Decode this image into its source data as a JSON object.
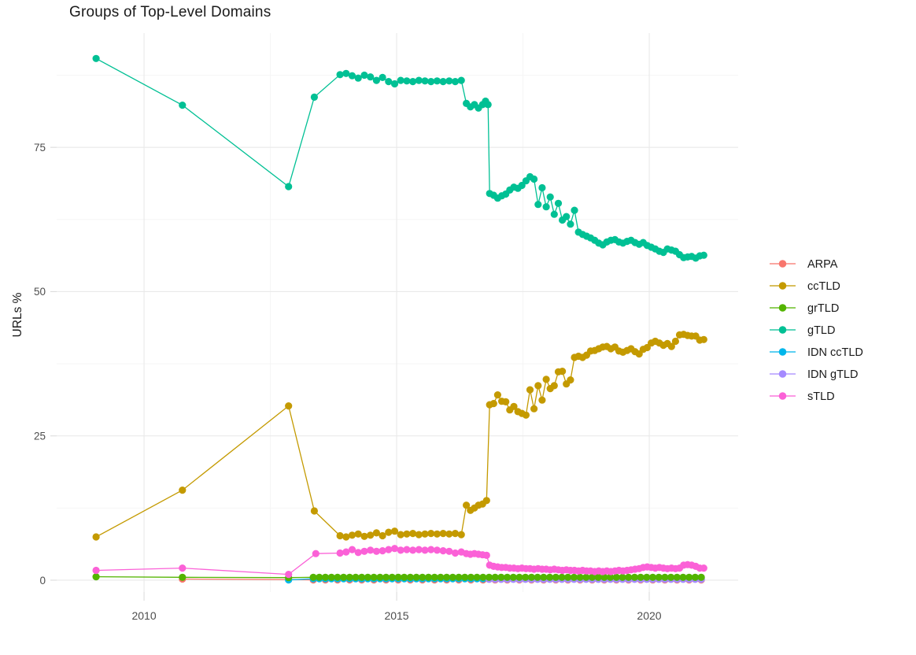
{
  "title": "Groups of Top-Level Domains",
  "colors": {
    "background": "#ffffff",
    "grid_major": "#e9e9e9",
    "grid_minor": "#f5f5f5",
    "tick_text": "#4d4d4d",
    "text": "#1a1a1a"
  },
  "chart_data": {
    "type": "line",
    "title": "Groups of Top-Level Domains",
    "xlabel": "",
    "ylabel": "URLs %",
    "grid": "on",
    "legend_position": "right",
    "xlim": [
      2008.27,
      2021.76
    ],
    "ylim": [
      -2.05,
      94.8
    ],
    "x_ticks": {
      "major": [
        2010,
        2015,
        2020
      ],
      "minor": [
        2012.5,
        2017.5
      ],
      "labels": [
        "2010",
        "2015",
        "2020"
      ]
    },
    "y_ticks": {
      "major": [
        0,
        25,
        50,
        75
      ],
      "minor": [
        12.5,
        37.5,
        62.5,
        87.5
      ],
      "labels": [
        "0",
        "25",
        "50",
        "75"
      ]
    },
    "draw_order": [
      "ARPA",
      "IDN ccTLD",
      "IDN gTLD",
      "grTLD",
      "sTLD",
      "ccTLD",
      "gTLD"
    ],
    "legend_order": [
      "ARPA",
      "ccTLD",
      "grTLD",
      "gTLD",
      "IDN ccTLD",
      "IDN gTLD",
      "sTLD"
    ],
    "series": [
      {
        "name": "ARPA",
        "color": "#F8766D",
        "points": [
          [
            2010.76,
            0.2
          ],
          [
            2012.86,
            0.1
          ]
        ],
        "flat": {
          "from": 2013.35,
          "to": 2021.03,
          "step": 0.24,
          "value": 0.05
        }
      },
      {
        "name": "ccTLD",
        "color": "#C49A00",
        "points": [
          [
            2009.05,
            7.5
          ],
          [
            2010.76,
            15.6
          ],
          [
            2012.86,
            30.2
          ],
          [
            2013.37,
            12.0
          ],
          [
            2013.88,
            7.7
          ],
          [
            2014.0,
            7.5
          ],
          [
            2014.12,
            7.8
          ],
          [
            2014.24,
            8.0
          ],
          [
            2014.36,
            7.6
          ],
          [
            2014.48,
            7.8
          ],
          [
            2014.6,
            8.2
          ],
          [
            2014.72,
            7.7
          ],
          [
            2014.84,
            8.3
          ],
          [
            2014.96,
            8.5
          ],
          [
            2015.08,
            7.9
          ],
          [
            2015.2,
            8.0
          ],
          [
            2015.32,
            8.1
          ],
          [
            2015.44,
            7.9
          ],
          [
            2015.56,
            8.0
          ],
          [
            2015.68,
            8.1
          ],
          [
            2015.8,
            8.0
          ],
          [
            2015.92,
            8.1
          ],
          [
            2016.04,
            8.0
          ],
          [
            2016.16,
            8.1
          ],
          [
            2016.28,
            7.9
          ],
          [
            2016.38,
            13.0
          ],
          [
            2016.46,
            12.1
          ],
          [
            2016.54,
            12.5
          ],
          [
            2016.62,
            13.0
          ],
          [
            2016.7,
            13.2
          ],
          [
            2016.78,
            13.8
          ],
          [
            2016.84,
            30.4
          ],
          [
            2016.92,
            30.6
          ],
          [
            2017.0,
            32.1
          ],
          [
            2017.08,
            31.0
          ],
          [
            2017.16,
            30.9
          ],
          [
            2017.24,
            29.5
          ],
          [
            2017.32,
            30.1
          ],
          [
            2017.4,
            29.2
          ],
          [
            2017.48,
            28.9
          ],
          [
            2017.56,
            28.6
          ],
          [
            2017.64,
            33.0
          ],
          [
            2017.72,
            29.7
          ],
          [
            2017.8,
            33.7
          ],
          [
            2017.88,
            31.2
          ],
          [
            2017.96,
            34.8
          ],
          [
            2018.04,
            33.2
          ],
          [
            2018.12,
            33.7
          ],
          [
            2018.2,
            36.1
          ],
          [
            2018.28,
            36.2
          ],
          [
            2018.36,
            34.0
          ],
          [
            2018.44,
            34.7
          ],
          [
            2018.52,
            38.6
          ],
          [
            2018.6,
            38.8
          ],
          [
            2018.68,
            38.6
          ],
          [
            2018.76,
            39.0
          ],
          [
            2018.84,
            39.7
          ],
          [
            2018.92,
            39.8
          ],
          [
            2019.0,
            40.1
          ],
          [
            2019.08,
            40.4
          ],
          [
            2019.16,
            40.5
          ],
          [
            2019.24,
            40.1
          ],
          [
            2019.32,
            40.4
          ],
          [
            2019.4,
            39.7
          ],
          [
            2019.48,
            39.5
          ],
          [
            2019.56,
            39.8
          ],
          [
            2019.64,
            40.1
          ],
          [
            2019.72,
            39.6
          ],
          [
            2019.8,
            39.2
          ],
          [
            2019.88,
            40.0
          ],
          [
            2019.96,
            40.3
          ],
          [
            2020.04,
            41.1
          ],
          [
            2020.12,
            41.4
          ],
          [
            2020.2,
            41.1
          ],
          [
            2020.28,
            40.7
          ],
          [
            2020.36,
            41.0
          ],
          [
            2020.44,
            40.5
          ],
          [
            2020.52,
            41.4
          ],
          [
            2020.6,
            42.5
          ],
          [
            2020.68,
            42.6
          ],
          [
            2020.76,
            42.4
          ],
          [
            2020.84,
            42.3
          ],
          [
            2020.92,
            42.3
          ],
          [
            2021.0,
            41.6
          ],
          [
            2021.08,
            41.7
          ]
        ]
      },
      {
        "name": "grTLD",
        "color": "#53B400",
        "points": [
          [
            2009.05,
            0.6
          ],
          [
            2010.76,
            0.5
          ],
          [
            2012.86,
            0.45
          ]
        ],
        "flat": {
          "from": 2013.35,
          "to": 2021.03,
          "step": 0.12,
          "value": 0.5
        }
      },
      {
        "name": "gTLD",
        "color": "#00C094",
        "points": [
          [
            2009.05,
            90.4
          ],
          [
            2010.76,
            82.3
          ],
          [
            2012.86,
            68.2
          ],
          [
            2013.37,
            83.7
          ],
          [
            2013.88,
            87.6
          ],
          [
            2014.0,
            87.8
          ],
          [
            2014.12,
            87.4
          ],
          [
            2014.24,
            87.0
          ],
          [
            2014.36,
            87.5
          ],
          [
            2014.48,
            87.2
          ],
          [
            2014.6,
            86.6
          ],
          [
            2014.72,
            87.1
          ],
          [
            2014.84,
            86.4
          ],
          [
            2014.96,
            86.0
          ],
          [
            2015.08,
            86.6
          ],
          [
            2015.2,
            86.5
          ],
          [
            2015.32,
            86.4
          ],
          [
            2015.44,
            86.6
          ],
          [
            2015.56,
            86.5
          ],
          [
            2015.68,
            86.4
          ],
          [
            2015.8,
            86.5
          ],
          [
            2015.92,
            86.4
          ],
          [
            2016.04,
            86.5
          ],
          [
            2016.16,
            86.4
          ],
          [
            2016.28,
            86.6
          ],
          [
            2016.38,
            82.6
          ],
          [
            2016.46,
            82.0
          ],
          [
            2016.54,
            82.4
          ],
          [
            2016.62,
            81.8
          ],
          [
            2016.7,
            82.4
          ],
          [
            2016.76,
            83.0
          ],
          [
            2016.81,
            82.4
          ],
          [
            2016.84,
            67.0
          ],
          [
            2016.92,
            66.7
          ],
          [
            2017.0,
            66.2
          ],
          [
            2017.08,
            66.6
          ],
          [
            2017.16,
            66.9
          ],
          [
            2017.24,
            67.6
          ],
          [
            2017.32,
            68.1
          ],
          [
            2017.4,
            67.9
          ],
          [
            2017.48,
            68.4
          ],
          [
            2017.56,
            69.2
          ],
          [
            2017.64,
            69.9
          ],
          [
            2017.72,
            69.5
          ],
          [
            2017.8,
            65.1
          ],
          [
            2017.88,
            68.0
          ],
          [
            2017.96,
            64.7
          ],
          [
            2018.04,
            66.4
          ],
          [
            2018.12,
            63.4
          ],
          [
            2018.2,
            65.3
          ],
          [
            2018.28,
            62.4
          ],
          [
            2018.36,
            63.0
          ],
          [
            2018.44,
            61.7
          ],
          [
            2018.52,
            64.1
          ],
          [
            2018.6,
            60.3
          ],
          [
            2018.68,
            59.9
          ],
          [
            2018.76,
            59.6
          ],
          [
            2018.84,
            59.3
          ],
          [
            2018.92,
            58.9
          ],
          [
            2019.0,
            58.4
          ],
          [
            2019.08,
            58.1
          ],
          [
            2019.16,
            58.6
          ],
          [
            2019.24,
            58.9
          ],
          [
            2019.32,
            59.0
          ],
          [
            2019.4,
            58.6
          ],
          [
            2019.48,
            58.4
          ],
          [
            2019.56,
            58.7
          ],
          [
            2019.64,
            58.9
          ],
          [
            2019.72,
            58.5
          ],
          [
            2019.8,
            58.2
          ],
          [
            2019.88,
            58.5
          ],
          [
            2019.96,
            58.0
          ],
          [
            2020.04,
            57.7
          ],
          [
            2020.12,
            57.4
          ],
          [
            2020.2,
            57.0
          ],
          [
            2020.28,
            56.8
          ],
          [
            2020.36,
            57.4
          ],
          [
            2020.44,
            57.2
          ],
          [
            2020.52,
            57.0
          ],
          [
            2020.6,
            56.4
          ],
          [
            2020.68,
            55.9
          ],
          [
            2020.76,
            56.0
          ],
          [
            2020.84,
            56.1
          ],
          [
            2020.92,
            55.8
          ],
          [
            2021.0,
            56.2
          ],
          [
            2021.08,
            56.3
          ]
        ]
      },
      {
        "name": "IDN ccTLD",
        "color": "#00B6EB",
        "points": [
          [
            2012.86,
            0.05
          ]
        ],
        "flat": {
          "from": 2013.35,
          "to": 2021.03,
          "step": 0.12,
          "value": 0.25
        }
      },
      {
        "name": "IDN gTLD",
        "color": "#A58AFF",
        "points": [],
        "flat": {
          "from": 2016.83,
          "to": 2021.03,
          "step": 0.12,
          "value": 0.15
        }
      },
      {
        "name": "sTLD",
        "color": "#FB61D7",
        "points": [
          [
            2009.05,
            1.7
          ],
          [
            2010.76,
            2.1
          ],
          [
            2012.86,
            1.0
          ],
          [
            2013.4,
            4.6
          ],
          [
            2013.88,
            4.7
          ],
          [
            2014.0,
            4.9
          ],
          [
            2014.12,
            5.3
          ],
          [
            2014.24,
            4.8
          ],
          [
            2014.36,
            5.0
          ],
          [
            2014.48,
            5.2
          ],
          [
            2014.6,
            5.0
          ],
          [
            2014.72,
            5.1
          ],
          [
            2014.84,
            5.3
          ],
          [
            2014.96,
            5.5
          ],
          [
            2015.08,
            5.2
          ],
          [
            2015.2,
            5.3
          ],
          [
            2015.32,
            5.2
          ],
          [
            2015.44,
            5.3
          ],
          [
            2015.56,
            5.2
          ],
          [
            2015.68,
            5.3
          ],
          [
            2015.8,
            5.2
          ],
          [
            2015.92,
            5.1
          ],
          [
            2016.04,
            5.0
          ],
          [
            2016.16,
            4.7
          ],
          [
            2016.28,
            4.9
          ],
          [
            2016.38,
            4.6
          ],
          [
            2016.46,
            4.5
          ],
          [
            2016.54,
            4.6
          ],
          [
            2016.62,
            4.5
          ],
          [
            2016.7,
            4.4
          ],
          [
            2016.78,
            4.3
          ],
          [
            2016.84,
            2.6
          ],
          [
            2016.92,
            2.4
          ],
          [
            2017.0,
            2.3
          ],
          [
            2017.08,
            2.2
          ],
          [
            2017.16,
            2.2
          ],
          [
            2017.24,
            2.1
          ],
          [
            2017.32,
            2.1
          ],
          [
            2017.4,
            2.0
          ],
          [
            2017.48,
            2.1
          ],
          [
            2017.56,
            2.0
          ],
          [
            2017.64,
            2.0
          ],
          [
            2017.72,
            1.9
          ],
          [
            2017.8,
            2.0
          ],
          [
            2017.88,
            1.9
          ],
          [
            2017.96,
            1.9
          ],
          [
            2018.04,
            1.8
          ],
          [
            2018.12,
            1.9
          ],
          [
            2018.2,
            1.8
          ],
          [
            2018.28,
            1.7
          ],
          [
            2018.36,
            1.8
          ],
          [
            2018.44,
            1.7
          ],
          [
            2018.52,
            1.7
          ],
          [
            2018.6,
            1.6
          ],
          [
            2018.68,
            1.7
          ],
          [
            2018.76,
            1.6
          ],
          [
            2018.84,
            1.6
          ],
          [
            2018.92,
            1.5
          ],
          [
            2019.0,
            1.6
          ],
          [
            2019.08,
            1.5
          ],
          [
            2019.16,
            1.6
          ],
          [
            2019.24,
            1.5
          ],
          [
            2019.32,
            1.6
          ],
          [
            2019.4,
            1.7
          ],
          [
            2019.48,
            1.6
          ],
          [
            2019.56,
            1.7
          ],
          [
            2019.64,
            1.8
          ],
          [
            2019.72,
            1.9
          ],
          [
            2019.8,
            2.0
          ],
          [
            2019.88,
            2.2
          ],
          [
            2019.96,
            2.3
          ],
          [
            2020.04,
            2.2
          ],
          [
            2020.12,
            2.1
          ],
          [
            2020.2,
            2.2
          ],
          [
            2020.28,
            2.1
          ],
          [
            2020.36,
            2.0
          ],
          [
            2020.44,
            2.1
          ],
          [
            2020.52,
            2.0
          ],
          [
            2020.6,
            2.1
          ],
          [
            2020.68,
            2.6
          ],
          [
            2020.76,
            2.7
          ],
          [
            2020.84,
            2.6
          ],
          [
            2020.92,
            2.4
          ],
          [
            2021.0,
            2.1
          ],
          [
            2021.08,
            2.1
          ]
        ]
      }
    ]
  }
}
